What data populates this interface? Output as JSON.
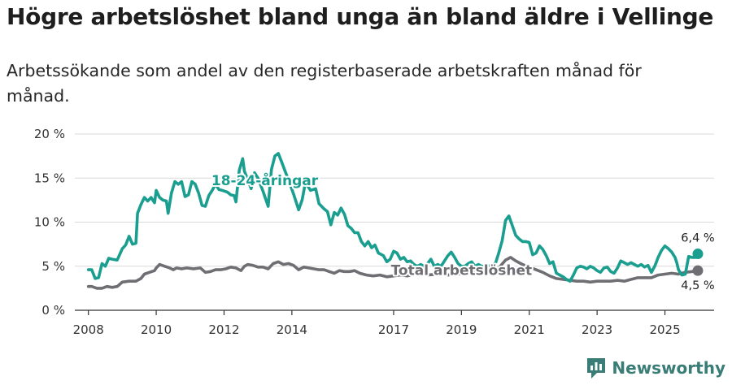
{
  "header": {
    "title": "Högre arbetslöshet bland unga än bland äldre i Vellinge",
    "subtitle": "Arbetssökande som andel av den registerbaserade arbetskraften månad för månad."
  },
  "brand": {
    "name": "Newsworthy",
    "color": "#3a7d76"
  },
  "chart_data": {
    "type": "line",
    "title": "Högre arbetslöshet bland unga än bland äldre i Vellinge",
    "xlabel": "",
    "ylabel": "",
    "x_range": [
      2007.6,
      2026.45
    ],
    "ylim": [
      0,
      20
    ],
    "grid": true,
    "y_ticks": [
      0,
      5,
      10,
      15,
      20
    ],
    "y_tick_labels": [
      "0 %",
      "5 %",
      "10 %",
      "15 %",
      "20 %"
    ],
    "x_ticks": [
      2008,
      2010,
      2012,
      2014,
      2017,
      2019,
      2021,
      2023,
      2025
    ],
    "x_tick_labels": [
      "2008",
      "2010",
      "2012",
      "2014",
      "2017",
      "2019",
      "2021",
      "2023",
      "2025"
    ],
    "series": [
      {
        "name": "18-24-åringar",
        "color": "#1a9e8f",
        "end_label": "6,4 %",
        "points": [
          [
            2008.0,
            4.6
          ],
          [
            2008.1,
            4.6
          ],
          [
            2008.2,
            3.6
          ],
          [
            2008.3,
            3.7
          ],
          [
            2008.4,
            5.3
          ],
          [
            2008.5,
            5.0
          ],
          [
            2008.6,
            5.9
          ],
          [
            2008.7,
            5.8
          ],
          [
            2008.85,
            5.7
          ],
          [
            2009.0,
            7.0
          ],
          [
            2009.1,
            7.4
          ],
          [
            2009.2,
            8.4
          ],
          [
            2009.3,
            7.5
          ],
          [
            2009.4,
            7.6
          ],
          [
            2009.45,
            11.0
          ],
          [
            2009.55,
            12.0
          ],
          [
            2009.65,
            12.8
          ],
          [
            2009.75,
            12.4
          ],
          [
            2009.85,
            12.8
          ],
          [
            2009.95,
            12.2
          ],
          [
            2010.0,
            13.6
          ],
          [
            2010.1,
            12.8
          ],
          [
            2010.2,
            12.5
          ],
          [
            2010.3,
            12.4
          ],
          [
            2010.35,
            11.0
          ],
          [
            2010.45,
            13.3
          ],
          [
            2010.55,
            14.6
          ],
          [
            2010.65,
            14.3
          ],
          [
            2010.75,
            14.6
          ],
          [
            2010.85,
            12.9
          ],
          [
            2010.95,
            13.1
          ],
          [
            2011.05,
            14.6
          ],
          [
            2011.15,
            14.3
          ],
          [
            2011.25,
            13.3
          ],
          [
            2011.35,
            11.9
          ],
          [
            2011.45,
            11.8
          ],
          [
            2011.55,
            13.0
          ],
          [
            2011.65,
            13.6
          ],
          [
            2011.75,
            14.3
          ],
          [
            2011.85,
            13.7
          ],
          [
            2011.95,
            13.6
          ],
          [
            2012.1,
            13.4
          ],
          [
            2012.2,
            13.1
          ],
          [
            2012.3,
            13.0
          ],
          [
            2012.35,
            12.3
          ],
          [
            2012.45,
            15.9
          ],
          [
            2012.55,
            17.2
          ],
          [
            2012.6,
            15.8
          ],
          [
            2012.7,
            14.8
          ],
          [
            2012.8,
            13.8
          ],
          [
            2012.9,
            15.6
          ],
          [
            2013.0,
            15.0
          ],
          [
            2013.15,
            13.5
          ],
          [
            2013.3,
            11.8
          ],
          [
            2013.4,
            16.0
          ],
          [
            2013.5,
            17.5
          ],
          [
            2013.6,
            17.8
          ],
          [
            2013.7,
            16.8
          ],
          [
            2013.8,
            15.8
          ],
          [
            2013.9,
            14.8
          ],
          [
            2014.05,
            13.2
          ],
          [
            2014.2,
            11.4
          ],
          [
            2014.3,
            12.5
          ],
          [
            2014.4,
            14.5
          ],
          [
            2014.55,
            13.6
          ],
          [
            2014.7,
            13.8
          ],
          [
            2014.8,
            12.1
          ],
          [
            2014.95,
            11.5
          ],
          [
            2015.05,
            11.2
          ],
          [
            2015.15,
            9.7
          ],
          [
            2015.25,
            11.1
          ],
          [
            2015.35,
            10.8
          ],
          [
            2015.45,
            11.6
          ],
          [
            2015.55,
            10.9
          ],
          [
            2015.65,
            9.6
          ],
          [
            2015.75,
            9.3
          ],
          [
            2015.85,
            8.8
          ],
          [
            2015.95,
            8.8
          ],
          [
            2016.05,
            7.8
          ],
          [
            2016.15,
            7.3
          ],
          [
            2016.25,
            7.8
          ],
          [
            2016.35,
            7.1
          ],
          [
            2016.45,
            7.4
          ],
          [
            2016.55,
            6.5
          ],
          [
            2016.7,
            6.2
          ],
          [
            2016.8,
            5.5
          ],
          [
            2016.9,
            5.8
          ],
          [
            2017.0,
            6.7
          ],
          [
            2017.1,
            6.5
          ],
          [
            2017.2,
            5.8
          ],
          [
            2017.3,
            6.0
          ],
          [
            2017.4,
            5.5
          ],
          [
            2017.5,
            5.6
          ],
          [
            2017.6,
            5.2
          ],
          [
            2017.7,
            5.0
          ],
          [
            2017.8,
            5.2
          ],
          [
            2017.9,
            5.0
          ],
          [
            2018.0,
            5.3
          ],
          [
            2018.1,
            5.8
          ],
          [
            2018.2,
            5.0
          ],
          [
            2018.3,
            5.2
          ],
          [
            2018.4,
            5.0
          ],
          [
            2018.5,
            5.6
          ],
          [
            2018.6,
            6.2
          ],
          [
            2018.7,
            6.6
          ],
          [
            2018.8,
            6.0
          ],
          [
            2018.9,
            5.3
          ],
          [
            2019.0,
            5.0
          ],
          [
            2019.1,
            5.0
          ],
          [
            2019.2,
            5.3
          ],
          [
            2019.3,
            5.5
          ],
          [
            2019.4,
            5.0
          ],
          [
            2019.5,
            5.2
          ],
          [
            2019.6,
            5.0
          ],
          [
            2019.7,
            4.9
          ],
          [
            2019.8,
            5.0
          ],
          [
            2019.9,
            5.2
          ],
          [
            2020.0,
            5.3
          ],
          [
            2020.1,
            6.5
          ],
          [
            2020.2,
            7.9
          ],
          [
            2020.3,
            10.2
          ],
          [
            2020.4,
            10.7
          ],
          [
            2020.5,
            9.6
          ],
          [
            2020.6,
            8.5
          ],
          [
            2020.7,
            8.1
          ],
          [
            2020.8,
            7.8
          ],
          [
            2020.9,
            7.8
          ],
          [
            2021.0,
            7.7
          ],
          [
            2021.1,
            6.3
          ],
          [
            2021.2,
            6.5
          ],
          [
            2021.3,
            7.3
          ],
          [
            2021.4,
            6.9
          ],
          [
            2021.5,
            6.2
          ],
          [
            2021.6,
            5.3
          ],
          [
            2021.7,
            5.5
          ],
          [
            2021.8,
            4.2
          ],
          [
            2021.9,
            4.0
          ],
          [
            2022.0,
            3.8
          ],
          [
            2022.1,
            3.5
          ],
          [
            2022.2,
            3.3
          ],
          [
            2022.3,
            4.0
          ],
          [
            2022.4,
            4.8
          ],
          [
            2022.5,
            5.0
          ],
          [
            2022.6,
            4.9
          ],
          [
            2022.7,
            4.7
          ],
          [
            2022.8,
            5.0
          ],
          [
            2022.9,
            4.8
          ],
          [
            2023.0,
            4.5
          ],
          [
            2023.1,
            4.3
          ],
          [
            2023.2,
            4.8
          ],
          [
            2023.3,
            4.9
          ],
          [
            2023.4,
            4.4
          ],
          [
            2023.5,
            4.2
          ],
          [
            2023.6,
            4.8
          ],
          [
            2023.7,
            5.6
          ],
          [
            2023.8,
            5.4
          ],
          [
            2023.9,
            5.2
          ],
          [
            2024.0,
            5.4
          ],
          [
            2024.1,
            5.2
          ],
          [
            2024.2,
            5.0
          ],
          [
            2024.3,
            5.2
          ],
          [
            2024.4,
            4.9
          ],
          [
            2024.5,
            5.1
          ],
          [
            2024.6,
            4.3
          ],
          [
            2024.7,
            5.0
          ],
          [
            2024.8,
            6.0
          ],
          [
            2024.9,
            6.8
          ],
          [
            2025.0,
            7.3
          ],
          [
            2025.1,
            7.0
          ],
          [
            2025.2,
            6.6
          ],
          [
            2025.3,
            6.0
          ],
          [
            2025.35,
            5.4
          ],
          [
            2025.4,
            4.6
          ],
          [
            2025.5,
            4.0
          ],
          [
            2025.6,
            4.1
          ],
          [
            2025.7,
            6.1
          ],
          [
            2025.8,
            6.0
          ],
          [
            2025.9,
            6.0
          ],
          [
            2025.97,
            6.4
          ]
        ]
      },
      {
        "name": "Total arbetslöshet",
        "color": "#6e6e73",
        "end_label": "4,5 %",
        "points": [
          [
            2008.0,
            2.7
          ],
          [
            2008.1,
            2.7
          ],
          [
            2008.25,
            2.5
          ],
          [
            2008.4,
            2.5
          ],
          [
            2008.55,
            2.7
          ],
          [
            2008.7,
            2.6
          ],
          [
            2008.85,
            2.7
          ],
          [
            2009.0,
            3.2
          ],
          [
            2009.2,
            3.3
          ],
          [
            2009.4,
            3.3
          ],
          [
            2009.55,
            3.6
          ],
          [
            2009.65,
            4.1
          ],
          [
            2009.8,
            4.3
          ],
          [
            2009.95,
            4.5
          ],
          [
            2010.0,
            4.8
          ],
          [
            2010.1,
            5.2
          ],
          [
            2010.25,
            5.0
          ],
          [
            2010.4,
            4.8
          ],
          [
            2010.5,
            4.6
          ],
          [
            2010.6,
            4.8
          ],
          [
            2010.75,
            4.7
          ],
          [
            2010.9,
            4.8
          ],
          [
            2011.1,
            4.7
          ],
          [
            2011.3,
            4.8
          ],
          [
            2011.45,
            4.3
          ],
          [
            2011.6,
            4.4
          ],
          [
            2011.75,
            4.6
          ],
          [
            2011.9,
            4.6
          ],
          [
            2012.05,
            4.7
          ],
          [
            2012.2,
            4.9
          ],
          [
            2012.35,
            4.8
          ],
          [
            2012.5,
            4.5
          ],
          [
            2012.6,
            5.0
          ],
          [
            2012.7,
            5.2
          ],
          [
            2012.85,
            5.1
          ],
          [
            2013.0,
            4.9
          ],
          [
            2013.15,
            4.9
          ],
          [
            2013.3,
            4.7
          ],
          [
            2013.45,
            5.3
          ],
          [
            2013.6,
            5.5
          ],
          [
            2013.75,
            5.2
          ],
          [
            2013.9,
            5.3
          ],
          [
            2014.05,
            5.1
          ],
          [
            2014.2,
            4.6
          ],
          [
            2014.35,
            4.9
          ],
          [
            2014.5,
            4.8
          ],
          [
            2014.65,
            4.7
          ],
          [
            2014.8,
            4.6
          ],
          [
            2014.95,
            4.6
          ],
          [
            2015.1,
            4.4
          ],
          [
            2015.25,
            4.2
          ],
          [
            2015.4,
            4.5
          ],
          [
            2015.55,
            4.4
          ],
          [
            2015.7,
            4.4
          ],
          [
            2015.85,
            4.5
          ],
          [
            2016.0,
            4.2
          ],
          [
            2016.2,
            4.0
          ],
          [
            2016.4,
            3.9
          ],
          [
            2016.6,
            4.0
          ],
          [
            2016.8,
            3.8
          ],
          [
            2017.0,
            3.9
          ],
          [
            2017.2,
            4.0
          ],
          [
            2017.4,
            3.9
          ],
          [
            2017.6,
            4.1
          ],
          [
            2017.8,
            4.1
          ],
          [
            2018.0,
            4.0
          ],
          [
            2018.3,
            4.1
          ],
          [
            2018.6,
            4.0
          ],
          [
            2018.9,
            4.1
          ],
          [
            2019.2,
            4.2
          ],
          [
            2019.5,
            4.3
          ],
          [
            2019.8,
            4.4
          ],
          [
            2020.1,
            4.8
          ],
          [
            2020.3,
            5.7
          ],
          [
            2020.45,
            6.0
          ],
          [
            2020.6,
            5.6
          ],
          [
            2020.8,
            5.2
          ],
          [
            2021.0,
            4.9
          ],
          [
            2021.2,
            4.6
          ],
          [
            2021.4,
            4.3
          ],
          [
            2021.6,
            3.9
          ],
          [
            2021.8,
            3.6
          ],
          [
            2022.0,
            3.5
          ],
          [
            2022.2,
            3.4
          ],
          [
            2022.4,
            3.3
          ],
          [
            2022.6,
            3.3
          ],
          [
            2022.8,
            3.2
          ],
          [
            2023.0,
            3.3
          ],
          [
            2023.2,
            3.3
          ],
          [
            2023.4,
            3.3
          ],
          [
            2023.6,
            3.4
          ],
          [
            2023.8,
            3.3
          ],
          [
            2024.0,
            3.5
          ],
          [
            2024.2,
            3.7
          ],
          [
            2024.4,
            3.7
          ],
          [
            2024.6,
            3.7
          ],
          [
            2024.8,
            4.0
          ],
          [
            2025.0,
            4.1
          ],
          [
            2025.2,
            4.2
          ],
          [
            2025.4,
            4.1
          ],
          [
            2025.6,
            4.3
          ],
          [
            2025.8,
            4.4
          ],
          [
            2025.97,
            4.5
          ]
        ]
      }
    ]
  }
}
